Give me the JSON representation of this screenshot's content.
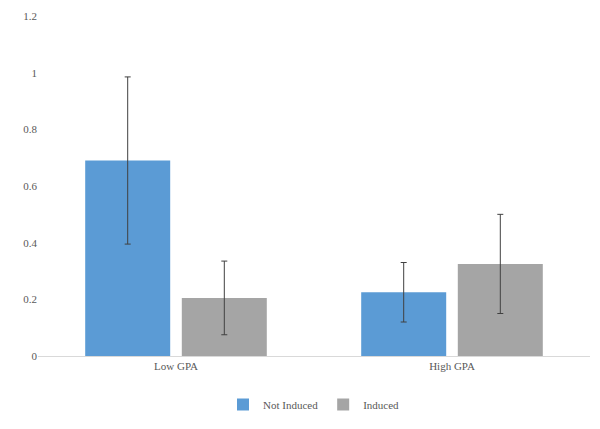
{
  "chart_data": {
    "type": "bar",
    "categories": [
      "Low GPA",
      "High GPA"
    ],
    "series": [
      {
        "name": "Not Induced",
        "color": "#5b9bd5",
        "values": [
          0.69,
          0.225
        ],
        "errors": [
          0.295,
          0.105
        ]
      },
      {
        "name": "Induced",
        "color": "#a5a5a5",
        "values": [
          0.205,
          0.325
        ],
        "errors": [
          0.13,
          0.175
        ]
      }
    ],
    "ylim": [
      0,
      1.2
    ],
    "yticks": [
      0,
      0.2,
      0.4,
      0.6,
      0.8,
      1,
      1.2
    ],
    "grid": false,
    "legend": "bottom"
  }
}
